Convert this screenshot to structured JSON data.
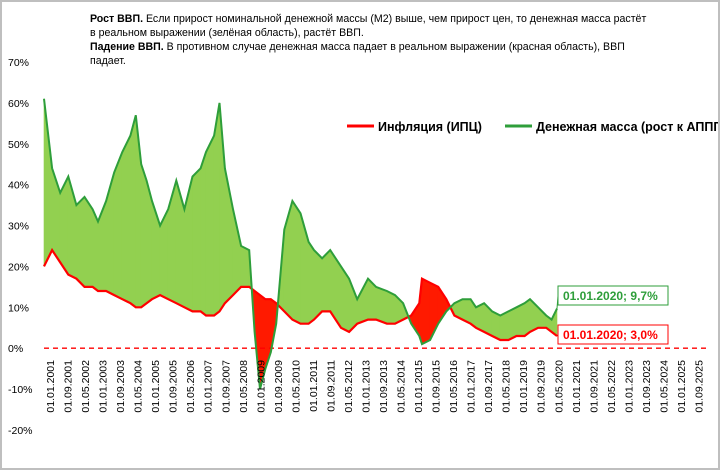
{
  "note": {
    "line1_bold": "Рост ВВП.",
    "line1_text": " Если прирост номинальной денежной массы (М2) выше, чем прирост цен,  то денежная масса растёт в реальном выражении (зелёная область), растёт ВВП.",
    "line2_bold": "Падение ВВП.",
    "line2_text": " В противном случае денежная масса падает в  реальном выражении (красная область), ВВП падает."
  },
  "legend": {
    "inflation": "Инфляция (ИПЦ)",
    "money": "Денежная масса (рост к АППГ)"
  },
  "callouts": {
    "money_last": "01.01.2020; 9,7%",
    "inflation_last": "01.01.2020; 3,0%"
  },
  "colors": {
    "money_line": "#2e9e3a",
    "money_fill": "#92d050",
    "inflation_line": "#ff0000",
    "inflation_fill": "#ff1a00",
    "zero_line": "#ff0000"
  },
  "chart_data": {
    "type": "area",
    "ylim": [
      -20,
      70
    ],
    "y_ticks": [
      "70%",
      "60%",
      "50%",
      "40%",
      "30%",
      "20%",
      "10%",
      "0%",
      "-10%",
      "-20%"
    ],
    "x_ticks": [
      "01.01.2001",
      "01.09.2001",
      "01.05.2002",
      "01.01.2003",
      "01.09.2003",
      "01.05.2004",
      "01.01.2005",
      "01.09.2005",
      "01.05.2006",
      "01.01.2007",
      "01.09.2007",
      "01.05.2008",
      "01.01.2009",
      "01.09.2009",
      "01.05.2010",
      "01.01.2011",
      "01.09.2011",
      "01.05.2012",
      "01.01.2013",
      "01.09.2013",
      "01.05.2014",
      "01.01.2015",
      "01.09.2015",
      "01.05.2016",
      "01.01.2017",
      "01.09.2017",
      "01.05.2018",
      "01.01.2019",
      "01.09.2019",
      "01.05.2020",
      "01.01.2021",
      "01.09.2021",
      "01.05.2022",
      "01.01.2023",
      "01.09.2023",
      "01.05.2024",
      "01.01.2025",
      "01.09.2025"
    ],
    "series": [
      {
        "name": "Денежная масса (рост к АППГ)",
        "x": [
          2001.0,
          2001.3,
          2001.6,
          2001.9,
          2002.2,
          2002.5,
          2002.8,
          2003.0,
          2003.3,
          2003.6,
          2003.9,
          2004.2,
          2004.4,
          2004.6,
          2004.8,
          2005.0,
          2005.3,
          2005.6,
          2005.9,
          2006.2,
          2006.5,
          2006.8,
          2007.0,
          2007.3,
          2007.5,
          2007.7,
          2008.0,
          2008.3,
          2008.6,
          2008.8,
          2009.0,
          2009.2,
          2009.4,
          2009.6,
          2009.9,
          2010.2,
          2010.5,
          2010.8,
          2011.0,
          2011.3,
          2011.6,
          2012.0,
          2012.3,
          2012.6,
          2013.0,
          2013.3,
          2013.7,
          2014.0,
          2014.3,
          2014.6,
          2014.9,
          2015.0,
          2015.3,
          2015.6,
          2015.9,
          2016.2,
          2016.5,
          2016.8,
          2017.0,
          2017.3,
          2017.6,
          2017.9,
          2018.2,
          2018.5,
          2018.8,
          2019.0,
          2019.3,
          2019.6,
          2019.8,
          2020.0
        ],
        "values": [
          61,
          44,
          38,
          42,
          35,
          37,
          34,
          31,
          36,
          43,
          48,
          52,
          57,
          45,
          41,
          36,
          30,
          34,
          41,
          34,
          42,
          44,
          48,
          52,
          60,
          44,
          34,
          25,
          24,
          4,
          -10,
          -5,
          -1,
          6,
          29,
          36,
          33,
          26,
          24,
          22,
          24,
          20,
          17,
          12,
          17,
          15,
          14,
          13,
          11,
          6,
          3,
          1,
          2,
          6,
          9,
          11,
          12,
          12,
          10,
          11,
          9,
          8,
          9,
          10,
          11,
          12,
          10,
          8,
          7,
          9.7
        ]
      },
      {
        "name": "Инфляция (ИПЦ)",
        "x": [
          2001.0,
          2001.3,
          2001.6,
          2001.9,
          2002.2,
          2002.5,
          2002.8,
          2003.0,
          2003.3,
          2003.6,
          2003.9,
          2004.2,
          2004.4,
          2004.6,
          2004.8,
          2005.0,
          2005.3,
          2005.6,
          2005.9,
          2006.2,
          2006.5,
          2006.8,
          2007.0,
          2007.3,
          2007.5,
          2007.7,
          2008.0,
          2008.3,
          2008.6,
          2008.8,
          2009.0,
          2009.2,
          2009.4,
          2009.6,
          2009.9,
          2010.2,
          2010.5,
          2010.8,
          2011.0,
          2011.3,
          2011.6,
          2012.0,
          2012.3,
          2012.6,
          2013.0,
          2013.3,
          2013.7,
          2014.0,
          2014.3,
          2014.6,
          2014.9,
          2015.0,
          2015.3,
          2015.6,
          2015.9,
          2016.2,
          2016.5,
          2016.8,
          2017.0,
          2017.3,
          2017.6,
          2017.9,
          2018.2,
          2018.5,
          2018.8,
          2019.0,
          2019.3,
          2019.6,
          2019.8,
          2020.0
        ],
        "values": [
          20,
          24,
          21,
          18,
          17,
          15,
          15,
          14,
          14,
          13,
          12,
          11,
          10,
          10,
          11,
          12,
          13,
          12,
          11,
          10,
          9,
          9,
          8,
          8,
          9,
          11,
          13,
          15,
          15,
          14,
          13,
          12,
          12,
          11,
          9,
          7,
          6,
          6,
          7,
          9,
          9,
          5,
          4,
          6,
          7,
          7,
          6,
          6,
          7,
          8,
          11,
          17,
          16,
          15,
          12,
          8,
          7,
          6,
          5,
          4,
          3,
          2,
          2,
          3,
          3,
          4,
          5,
          5,
          4,
          3.0
        ]
      }
    ]
  }
}
